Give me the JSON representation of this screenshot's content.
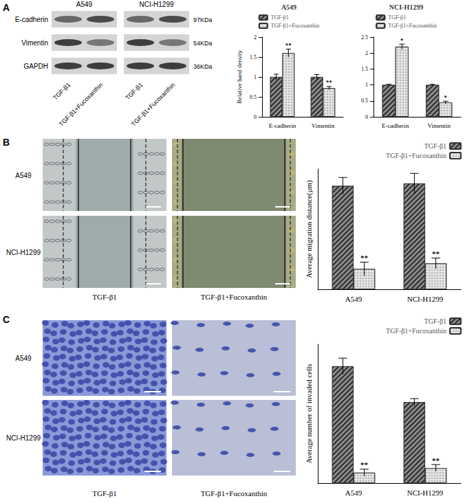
{
  "figure": {
    "panels": [
      "A",
      "B",
      "C"
    ],
    "blot": {
      "cell_lines": [
        "A549",
        "NCI-H1299"
      ],
      "proteins": [
        {
          "name": "E-cadherin",
          "size": "97KDa"
        },
        {
          "name": "Vimentin",
          "size": "54KDa"
        },
        {
          "name": "GAPDH",
          "size": "36KDa"
        }
      ],
      "lanes": [
        "TGF-β1",
        "TGF-β1+Fucoxanthin"
      ]
    },
    "migration_images": {
      "rows": [
        "A549",
        "NCI-H1299"
      ],
      "columns": [
        "TGF-β1",
        "TGF-β1+Fucoxanthin"
      ]
    },
    "invasion_images": {
      "rows": [
        "A549",
        "NCI-H1299"
      ],
      "columns": [
        "TGF-β1",
        "TGF-β1+Fucoxanthin"
      ]
    }
  },
  "chart_data": [
    {
      "type": "bar",
      "title": "A549",
      "y_label": "Relative band density",
      "categories": [
        "E-cadherin",
        "Vimentin"
      ],
      "series": [
        {
          "name": "TGF-β1",
          "color": "#8c8c8c",
          "values": [
            1.0,
            1.0
          ],
          "errors": [
            0.07,
            0.06
          ]
        },
        {
          "name": "TGF-β1+Fucoxanthin",
          "color": "#e4e4e4",
          "values": [
            1.6,
            0.72
          ],
          "errors": [
            0.1,
            0.04
          ],
          "significance": [
            "**",
            "**"
          ]
        }
      ],
      "ylim": [
        0,
        2
      ],
      "yticks": [
        0,
        0.5,
        1,
        1.5,
        2
      ],
      "legend": "top",
      "grid": false
    },
    {
      "type": "bar",
      "title": "NCI-H1299",
      "categories": [
        "E-cadherin",
        "Vimentin"
      ],
      "series": [
        {
          "name": "TGF-β1",
          "color": "#8c8c8c",
          "values": [
            1.0,
            1.0
          ],
          "errors": [
            0.02,
            0.02
          ]
        },
        {
          "name": "TGF-β1+Fucoxanthin",
          "color": "#e4e4e4",
          "values": [
            2.2,
            0.45
          ],
          "errors": [
            0.08,
            0.04
          ],
          "significance": [
            "*",
            "*"
          ]
        }
      ],
      "ylim": [
        0,
        2.5
      ],
      "yticks": [
        0,
        0.5,
        1,
        1.5,
        2,
        2.5
      ],
      "legend": "top",
      "grid": false
    },
    {
      "type": "bar",
      "y_label": "Average migration distance(μm)",
      "categories": [
        "A549",
        "NCI-H1299"
      ],
      "series": [
        {
          "name": "TGF-β1",
          "color": "#8c8c8c",
          "values": [
            430,
            440
          ],
          "errors": [
            35,
            42
          ]
        },
        {
          "name": "TGF-β1+Fucoxanthin",
          "color": "#e4e4e4",
          "values": [
            85,
            108
          ],
          "errors": [
            28,
            22
          ],
          "significance": [
            "**",
            "**"
          ]
        }
      ],
      "ylim": [
        0,
        500
      ],
      "tick_labels": "x",
      "legend": "top",
      "grid": false
    },
    {
      "type": "bar",
      "y_label": "Average number of invaded cells",
      "categories": [
        "A549",
        "NCI-H1299"
      ],
      "series": [
        {
          "name": "TGF-β1",
          "color": "#8c8c8c",
          "values": [
            505,
            350
          ],
          "errors": [
            35,
            15
          ]
        },
        {
          "name": "TGF-β1+Fucoxanthin",
          "color": "#e4e4e4",
          "values": [
            45,
            65
          ],
          "errors": [
            15,
            15
          ],
          "significance": [
            "**",
            "**"
          ]
        }
      ],
      "ylim": [
        0,
        600
      ],
      "tick_labels": "x",
      "legend": "top",
      "grid": false
    }
  ]
}
